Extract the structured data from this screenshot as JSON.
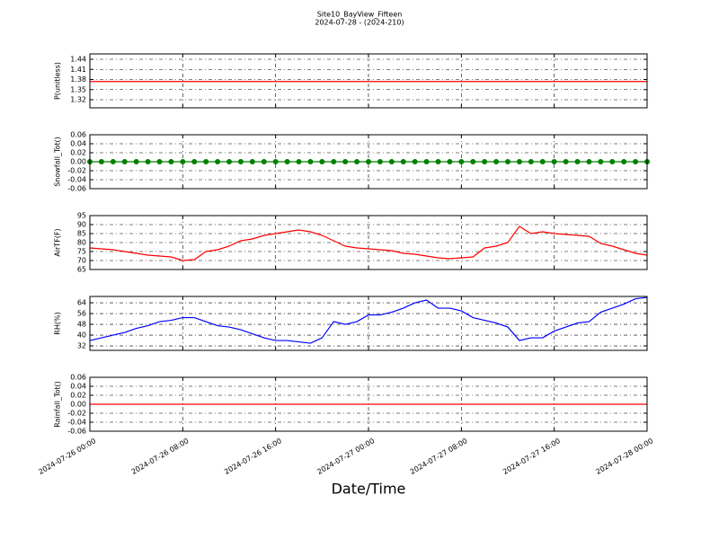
{
  "chart_data": [
    {
      "type": "line",
      "title": "Site10_BayView_Fifteen",
      "subtitle": "2024-07-28 - (2024-210)",
      "ylabel": "P(unitless)",
      "x": [
        "2024-07-26 00:00",
        "2024-07-26 01:00",
        "2024-07-26 02:00",
        "2024-07-26 03:00",
        "2024-07-26 04:00",
        "2024-07-26 05:00",
        "2024-07-26 06:00",
        "2024-07-26 07:00",
        "2024-07-26 08:00",
        "2024-07-26 09:00",
        "2024-07-26 10:00",
        "2024-07-26 11:00",
        "2024-07-26 12:00",
        "2024-07-26 13:00",
        "2024-07-26 14:00",
        "2024-07-26 15:00",
        "2024-07-26 16:00",
        "2024-07-26 17:00",
        "2024-07-26 18:00",
        "2024-07-26 19:00",
        "2024-07-26 20:00",
        "2024-07-26 21:00",
        "2024-07-26 22:00",
        "2024-07-26 23:00",
        "2024-07-27 00:00",
        "2024-07-27 01:00",
        "2024-07-27 02:00",
        "2024-07-27 03:00",
        "2024-07-27 04:00",
        "2024-07-27 05:00",
        "2024-07-27 06:00",
        "2024-07-27 07:00",
        "2024-07-27 08:00",
        "2024-07-27 09:00",
        "2024-07-27 10:00",
        "2024-07-27 11:00",
        "2024-07-27 12:00",
        "2024-07-27 13:00",
        "2024-07-27 14:00",
        "2024-07-27 15:00",
        "2024-07-27 16:00",
        "2024-07-27 17:00",
        "2024-07-27 18:00",
        "2024-07-27 19:00",
        "2024-07-27 20:00",
        "2024-07-27 21:00",
        "2024-07-27 22:00",
        "2024-07-27 23:00",
        "2024-07-28 00:00"
      ],
      "series": [
        {
          "color": "#ff0000",
          "values": [
            1.374,
            1.374,
            1.374,
            1.374,
            1.374,
            1.374,
            1.374,
            1.374,
            1.374,
            1.374,
            1.374,
            1.374,
            1.374,
            1.374,
            1.374,
            1.374,
            1.374,
            1.374,
            1.374,
            1.374,
            1.374,
            1.374,
            1.374,
            1.374,
            1.374,
            1.374,
            1.374,
            1.374,
            1.374,
            1.374,
            1.374,
            1.374,
            1.374,
            1.374,
            1.374,
            1.374,
            1.374,
            1.374,
            1.374,
            1.374,
            1.374,
            1.374,
            1.374,
            1.374,
            1.374,
            1.374,
            1.374,
            1.374,
            1.374
          ]
        }
      ],
      "xlim": [
        "2024-07-26 00:00",
        "2024-07-28 00:00"
      ],
      "ylim": [
        1.296,
        1.456
      ],
      "yticks": [
        1.32,
        1.35,
        1.38,
        1.41,
        1.44
      ],
      "grid": true
    },
    {
      "type": "line",
      "ylabel": "Snowfall_Tot()",
      "x": [
        "2024-07-26 00:00",
        "2024-07-26 01:00",
        "2024-07-26 02:00",
        "2024-07-26 03:00",
        "2024-07-26 04:00",
        "2024-07-26 05:00",
        "2024-07-26 06:00",
        "2024-07-26 07:00",
        "2024-07-26 08:00",
        "2024-07-26 09:00",
        "2024-07-26 10:00",
        "2024-07-26 11:00",
        "2024-07-26 12:00",
        "2024-07-26 13:00",
        "2024-07-26 14:00",
        "2024-07-26 15:00",
        "2024-07-26 16:00",
        "2024-07-26 17:00",
        "2024-07-26 18:00",
        "2024-07-26 19:00",
        "2024-07-26 20:00",
        "2024-07-26 21:00",
        "2024-07-26 22:00",
        "2024-07-26 23:00",
        "2024-07-27 00:00",
        "2024-07-27 01:00",
        "2024-07-27 02:00",
        "2024-07-27 03:00",
        "2024-07-27 04:00",
        "2024-07-27 05:00",
        "2024-07-27 06:00",
        "2024-07-27 07:00",
        "2024-07-27 08:00",
        "2024-07-27 09:00",
        "2024-07-27 10:00",
        "2024-07-27 11:00",
        "2024-07-27 12:00",
        "2024-07-27 13:00",
        "2024-07-27 14:00",
        "2024-07-27 15:00",
        "2024-07-27 16:00",
        "2024-07-27 17:00",
        "2024-07-27 18:00",
        "2024-07-27 19:00",
        "2024-07-27 20:00",
        "2024-07-27 21:00",
        "2024-07-27 22:00",
        "2024-07-27 23:00",
        "2024-07-28 00:00"
      ],
      "series": [
        {
          "color": "#008000",
          "marker": "o",
          "values": [
            0,
            0,
            0,
            0,
            0,
            0,
            0,
            0,
            0,
            0,
            0,
            0,
            0,
            0,
            0,
            0,
            0,
            0,
            0,
            0,
            0,
            0,
            0,
            0,
            0,
            0,
            0,
            0,
            0,
            0,
            0,
            0,
            0,
            0,
            0,
            0,
            0,
            0,
            0,
            0,
            0,
            0,
            0,
            0,
            0,
            0,
            0,
            0,
            0
          ]
        }
      ],
      "xlim": [
        "2024-07-26 00:00",
        "2024-07-28 00:00"
      ],
      "ylim": [
        -0.06,
        0.06
      ],
      "yticks": [
        -0.06,
        -0.04,
        -0.02,
        {
          "value": 0,
          "label": "0.00"
        },
        0.02,
        0.04,
        0.06
      ],
      "grid": true
    },
    {
      "type": "line",
      "ylabel": "AirTF(F)",
      "x": [
        "2024-07-26 00:00",
        "2024-07-26 01:00",
        "2024-07-26 02:00",
        "2024-07-26 03:00",
        "2024-07-26 04:00",
        "2024-07-26 05:00",
        "2024-07-26 06:00",
        "2024-07-26 07:00",
        "2024-07-26 08:00",
        "2024-07-26 09:00",
        "2024-07-26 10:00",
        "2024-07-26 11:00",
        "2024-07-26 12:00",
        "2024-07-26 13:00",
        "2024-07-26 14:00",
        "2024-07-26 15:00",
        "2024-07-26 16:00",
        "2024-07-26 17:00",
        "2024-07-26 18:00",
        "2024-07-26 19:00",
        "2024-07-26 20:00",
        "2024-07-26 21:00",
        "2024-07-26 22:00",
        "2024-07-26 23:00",
        "2024-07-27 00:00",
        "2024-07-27 01:00",
        "2024-07-27 02:00",
        "2024-07-27 03:00",
        "2024-07-27 04:00",
        "2024-07-27 05:00",
        "2024-07-27 06:00",
        "2024-07-27 07:00",
        "2024-07-27 08:00",
        "2024-07-27 09:00",
        "2024-07-27 10:00",
        "2024-07-27 11:00",
        "2024-07-27 12:00",
        "2024-07-27 13:00",
        "2024-07-27 14:00",
        "2024-07-27 15:00",
        "2024-07-27 16:00",
        "2024-07-27 17:00",
        "2024-07-27 18:00",
        "2024-07-27 19:00",
        "2024-07-27 20:00",
        "2024-07-27 21:00",
        "2024-07-27 22:00",
        "2024-07-27 23:00",
        "2024-07-28 00:00"
      ],
      "series": [
        {
          "color": "#ff0000",
          "values": [
            77,
            76.5,
            76,
            75,
            74,
            73,
            72.5,
            72,
            70,
            70.5,
            75,
            76,
            78,
            81,
            82,
            84,
            85,
            86,
            87,
            86,
            84,
            81,
            78,
            77,
            76.5,
            76,
            75.5,
            74,
            73.5,
            72.5,
            71.5,
            71,
            71.5,
            72,
            77,
            78,
            80,
            89,
            85,
            86,
            85,
            84.5,
            84,
            83.5,
            79.5,
            78,
            76,
            74,
            73
          ]
        }
      ],
      "xlim": [
        "2024-07-26 00:00",
        "2024-07-28 00:00"
      ],
      "ylim": [
        65,
        95
      ],
      "yticks": [
        65,
        70,
        75,
        80,
        85,
        90,
        95
      ],
      "grid": true
    },
    {
      "type": "line",
      "ylabel": "RH(%)",
      "x": [
        "2024-07-26 00:00",
        "2024-07-26 01:00",
        "2024-07-26 02:00",
        "2024-07-26 03:00",
        "2024-07-26 04:00",
        "2024-07-26 05:00",
        "2024-07-26 06:00",
        "2024-07-26 07:00",
        "2024-07-26 08:00",
        "2024-07-26 09:00",
        "2024-07-26 10:00",
        "2024-07-26 11:00",
        "2024-07-26 12:00",
        "2024-07-26 13:00",
        "2024-07-26 14:00",
        "2024-07-26 15:00",
        "2024-07-26 16:00",
        "2024-07-26 17:00",
        "2024-07-26 18:00",
        "2024-07-26 19:00",
        "2024-07-26 20:00",
        "2024-07-26 21:00",
        "2024-07-26 22:00",
        "2024-07-26 23:00",
        "2024-07-27 00:00",
        "2024-07-27 01:00",
        "2024-07-27 02:00",
        "2024-07-27 03:00",
        "2024-07-27 04:00",
        "2024-07-27 05:00",
        "2024-07-27 06:00",
        "2024-07-27 07:00",
        "2024-07-27 08:00",
        "2024-07-27 09:00",
        "2024-07-27 10:00",
        "2024-07-27 11:00",
        "2024-07-27 12:00",
        "2024-07-27 13:00",
        "2024-07-27 14:00",
        "2024-07-27 15:00",
        "2024-07-27 16:00",
        "2024-07-27 17:00",
        "2024-07-27 18:00",
        "2024-07-27 19:00",
        "2024-07-27 20:00",
        "2024-07-27 21:00",
        "2024-07-27 22:00",
        "2024-07-27 23:00",
        "2024-07-28 00:00"
      ],
      "series": [
        {
          "color": "#0000ff",
          "values": [
            36,
            38,
            40,
            42,
            45,
            47,
            50,
            51,
            53,
            53,
            50,
            47,
            46,
            44,
            41,
            38,
            36,
            36,
            35,
            34,
            38,
            50,
            48,
            50,
            55,
            55,
            57,
            60,
            64,
            66,
            60,
            60,
            58,
            53,
            51,
            49,
            46,
            36,
            38,
            38,
            43,
            46,
            49,
            50,
            57,
            60,
            63,
            67,
            68
          ]
        }
      ],
      "xlim": [
        "2024-07-26 00:00",
        "2024-07-28 00:00"
      ],
      "ylim": [
        28.7,
        68.7
      ],
      "yticks": [
        32,
        40,
        48,
        56,
        64
      ],
      "grid": true
    },
    {
      "type": "line",
      "ylabel": "Rainfall_Tot()",
      "xlabel": "Date/Time",
      "x": [
        "2024-07-26 00:00",
        "2024-07-26 01:00",
        "2024-07-26 02:00",
        "2024-07-26 03:00",
        "2024-07-26 04:00",
        "2024-07-26 05:00",
        "2024-07-26 06:00",
        "2024-07-26 07:00",
        "2024-07-26 08:00",
        "2024-07-26 09:00",
        "2024-07-26 10:00",
        "2024-07-26 11:00",
        "2024-07-26 12:00",
        "2024-07-26 13:00",
        "2024-07-26 14:00",
        "2024-07-26 15:00",
        "2024-07-26 16:00",
        "2024-07-26 17:00",
        "2024-07-26 18:00",
        "2024-07-26 19:00",
        "2024-07-26 20:00",
        "2024-07-26 21:00",
        "2024-07-26 22:00",
        "2024-07-26 23:00",
        "2024-07-27 00:00",
        "2024-07-27 01:00",
        "2024-07-27 02:00",
        "2024-07-27 03:00",
        "2024-07-27 04:00",
        "2024-07-27 05:00",
        "2024-07-27 06:00",
        "2024-07-27 07:00",
        "2024-07-27 08:00",
        "2024-07-27 09:00",
        "2024-07-27 10:00",
        "2024-07-27 11:00",
        "2024-07-27 12:00",
        "2024-07-27 13:00",
        "2024-07-27 14:00",
        "2024-07-27 15:00",
        "2024-07-27 16:00",
        "2024-07-27 17:00",
        "2024-07-27 18:00",
        "2024-07-27 19:00",
        "2024-07-27 20:00",
        "2024-07-27 21:00",
        "2024-07-27 22:00",
        "2024-07-27 23:00",
        "2024-07-28 00:00"
      ],
      "series": [
        {
          "color": "#ff0000",
          "values": [
            0,
            0,
            0,
            0,
            0,
            0,
            0,
            0,
            0,
            0,
            0,
            0,
            0,
            0,
            0,
            0,
            0,
            0,
            0,
            0,
            0,
            0,
            0,
            0,
            0,
            0,
            0,
            0,
            0,
            0,
            0,
            0,
            0,
            0,
            0,
            0,
            0,
            0,
            0,
            0,
            0,
            0,
            0,
            0,
            0,
            0,
            0,
            0,
            0
          ]
        }
      ],
      "xlim": [
        "2024-07-26 00:00",
        "2024-07-28 00:00"
      ],
      "ylim": [
        -0.06,
        0.06
      ],
      "yticks": [
        -0.06,
        -0.04,
        -0.02,
        {
          "value": 0,
          "label": "0.00"
        },
        0.02,
        0.04,
        0.06
      ],
      "xticks": [
        "2024-07-26 00:00",
        "2024-07-26 08:00",
        "2024-07-26 16:00",
        "2024-07-27 00:00",
        "2024-07-27 08:00",
        "2024-07-27 16:00",
        "2024-07-28 00:00"
      ],
      "grid": true
    }
  ]
}
